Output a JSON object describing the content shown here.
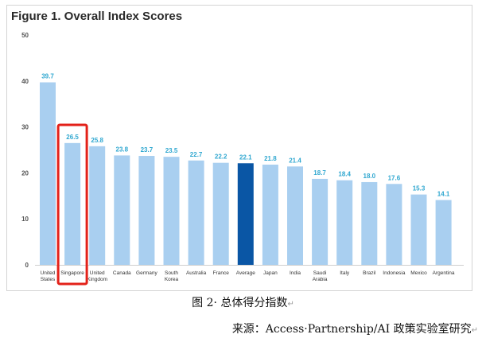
{
  "figure_title": "Figure 1. Overall Index Scores",
  "caption": "图 2· 总体得分指数",
  "source": "来源：Access·Partnership/AI 政策实验室研究",
  "paragraph_mark": "↵",
  "colors": {
    "bar": "#a9cff0",
    "highlight_bar": "#0a56a5",
    "value_label": "#2fa7d0",
    "axis_text": "#555555",
    "callout_box": "#e32119"
  },
  "chart_data": {
    "type": "bar",
    "title": "Figure 1. Overall Index Scores",
    "xlabel": "",
    "ylabel": "",
    "ylim": [
      0,
      50
    ],
    "yticks": [
      0,
      10,
      20,
      30,
      40,
      50
    ],
    "grid": false,
    "legend": "none",
    "categories": [
      [
        "United",
        "States"
      ],
      [
        "Singapore"
      ],
      [
        "United",
        "Kingdom"
      ],
      [
        "Canada"
      ],
      [
        "Germany"
      ],
      [
        "South",
        "Korea"
      ],
      [
        "Australia"
      ],
      [
        "France"
      ],
      [
        "Average"
      ],
      [
        "Japan"
      ],
      [
        "India"
      ],
      [
        "Saudi",
        "Arabia"
      ],
      [
        "Italy"
      ],
      [
        "Brazil"
      ],
      [
        "Indonesia"
      ],
      [
        "Mexico"
      ],
      [
        "Argentina"
      ]
    ],
    "values": [
      39.7,
      26.5,
      25.8,
      23.8,
      23.7,
      23.5,
      22.7,
      22.2,
      22.1,
      21.8,
      21.4,
      18.7,
      18.4,
      18.0,
      17.6,
      15.3,
      14.1
    ],
    "highlighted_category": "Average",
    "boxed_category": "Singapore"
  }
}
